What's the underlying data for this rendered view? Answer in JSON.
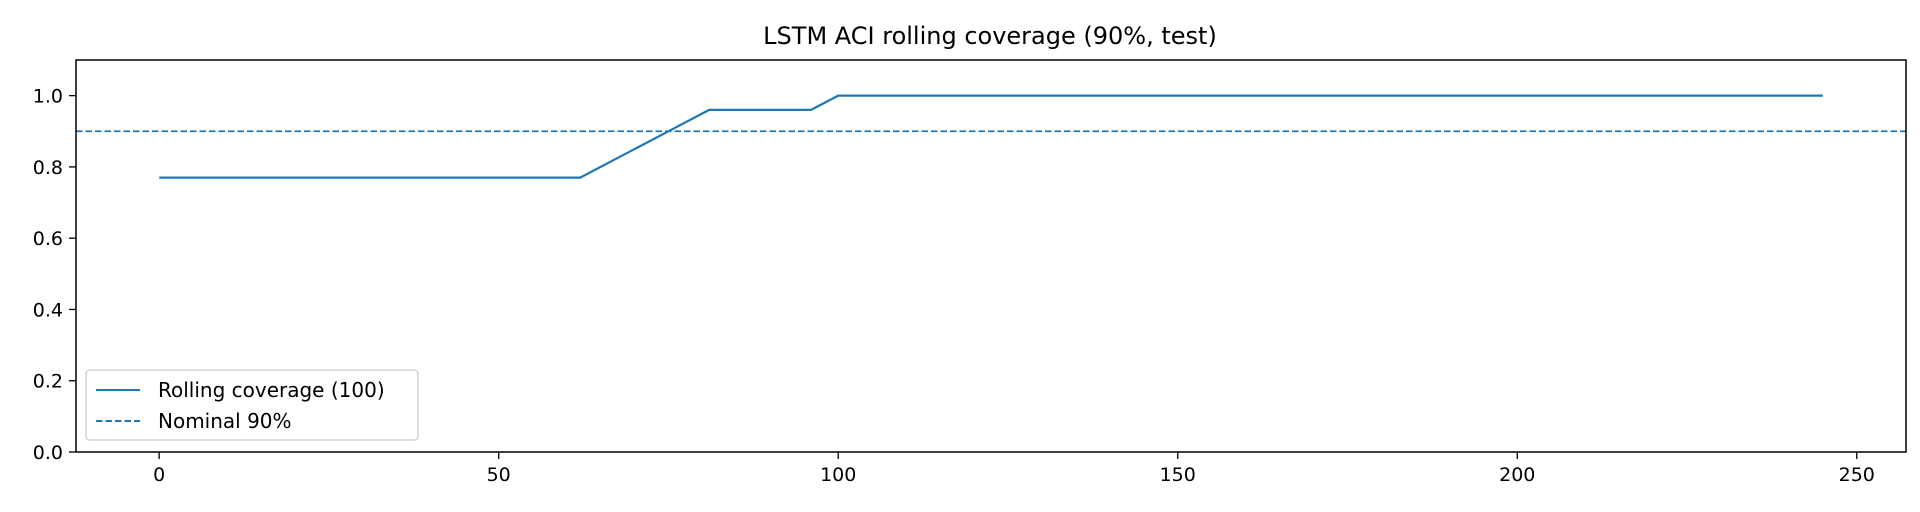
{
  "chart_data": {
    "type": "line",
    "title": "LSTM ACI rolling coverage (90%, test)",
    "xlabel": "",
    "ylabel": "",
    "xlim": [
      -12.25,
      257.25
    ],
    "ylim": [
      0.0,
      1.1
    ],
    "xticks": [
      0,
      50,
      100,
      150,
      200,
      250
    ],
    "yticks": [
      0.0,
      0.2,
      0.4,
      0.6,
      0.8,
      1.0
    ],
    "xtick_labels": [
      "0",
      "50",
      "100",
      "150",
      "200",
      "250"
    ],
    "ytick_labels": [
      "0.0",
      "0.2",
      "0.4",
      "0.6",
      "0.8",
      "1.0"
    ],
    "grid": false,
    "legend_position": "lower-left",
    "series": [
      {
        "name": "Rolling coverage (100)",
        "style": "solid",
        "color": "#1f77b4",
        "x": [
          0,
          62,
          81,
          96,
          100,
          245
        ],
        "y": [
          0.77,
          0.77,
          0.96,
          0.96,
          1.0,
          1.0
        ]
      },
      {
        "name": "Nominal 90%",
        "style": "dashed",
        "color": "#1f77b4",
        "hline": 0.9
      }
    ]
  }
}
